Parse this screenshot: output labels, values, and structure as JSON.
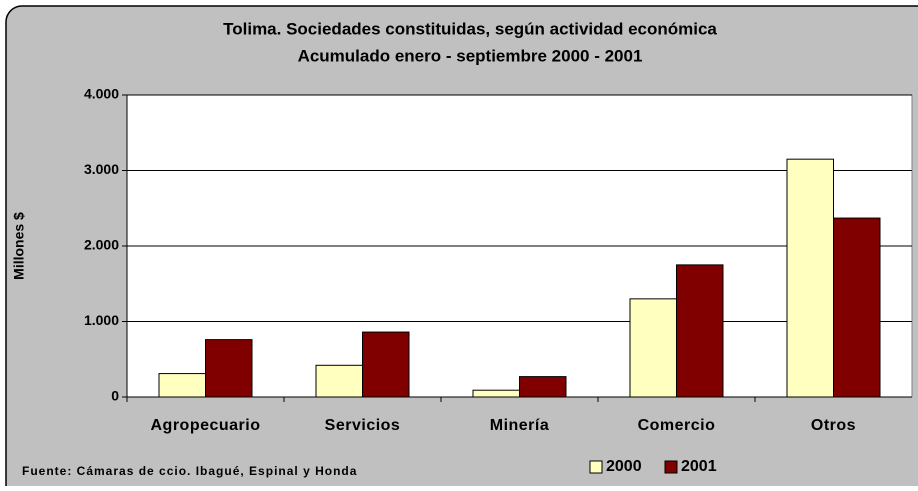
{
  "chart_data": {
    "type": "bar",
    "title": "Tolima. Sociedades constituidas, según actividad económica",
    "subtitle": "Acumulado enero - septiembre 2000 - 2001",
    "y_label": "Millones $",
    "source": "Fuente: Cámaras de ccio. Ibagué, Espinal y Honda",
    "categories": [
      "Agropecuario",
      "Servicios",
      "Minería",
      "Comercio",
      "Otros"
    ],
    "series": [
      {
        "name": "2000",
        "color": "#ffffc0",
        "values": [
          310,
          420,
          90,
          1300,
          3150
        ]
      },
      {
        "name": "2001",
        "color": "#800000",
        "values": [
          760,
          860,
          270,
          1750,
          2370
        ]
      }
    ],
    "ylim": [
      0,
      4000
    ],
    "yticks": [
      0,
      {
        "value": 1000,
        "label": "1.000"
      },
      {
        "value": 2000,
        "label": "2.000"
      },
      {
        "value": 3000,
        "label": "3.000"
      },
      {
        "value": 4000,
        "label": "4.000"
      }
    ],
    "grid": true,
    "legend": "bottom"
  }
}
